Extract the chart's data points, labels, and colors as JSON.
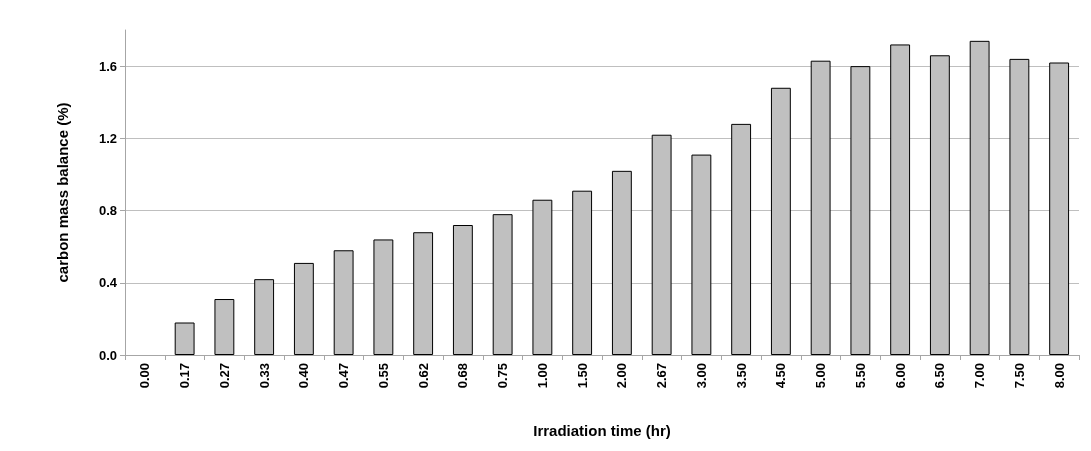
{
  "chart_data": {
    "type": "bar",
    "xlabel": "Irradiation time (hr)",
    "ylabel": "carbon mass balance (%)",
    "categories": [
      "0.00",
      "0.17",
      "0.27",
      "0.33",
      "0.40",
      "0.47",
      "0.55",
      "0.62",
      "0.68",
      "0.75",
      "1.00",
      "1.50",
      "2.00",
      "2.67",
      "3.00",
      "3.50",
      "4.50",
      "5.00",
      "5.50",
      "6.00",
      "6.50",
      "7.00",
      "7.50",
      "8.00"
    ],
    "values": [
      null,
      0.18,
      0.31,
      0.42,
      0.51,
      0.58,
      0.64,
      0.68,
      0.72,
      0.78,
      0.86,
      0.91,
      1.02,
      1.22,
      1.11,
      1.28,
      1.48,
      1.63,
      1.6,
      1.72,
      1.66,
      1.74,
      1.64,
      1.62
    ],
    "color": "#c0c0c0",
    "ylim": [
      0,
      1.8
    ],
    "yticks": [
      {
        "value": 0,
        "label": "0.0"
      },
      {
        "value": 0.4,
        "label": "0.4"
      },
      {
        "value": 0.8,
        "label": "0.8"
      },
      {
        "value": 1.2,
        "label": "1.2"
      },
      {
        "value": 1.6,
        "label": "1.6"
      }
    ],
    "grid": "y"
  }
}
